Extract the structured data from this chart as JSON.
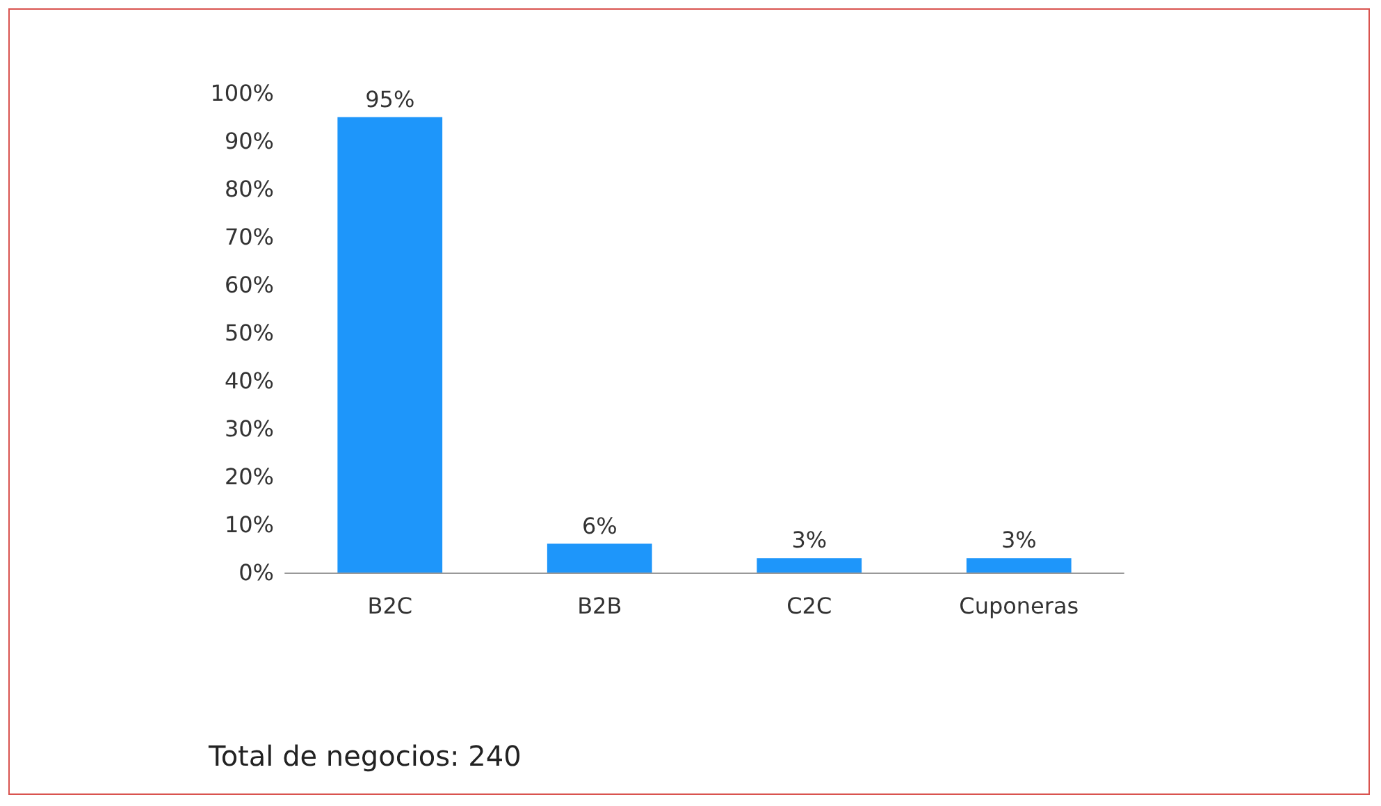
{
  "chart_data": {
    "type": "bar",
    "categories": [
      "B2C",
      "B2B",
      "C2C",
      "Cuponeras"
    ],
    "values": [
      95,
      6,
      3,
      3
    ],
    "value_labels": [
      "95%",
      "6%",
      "3%",
      "3%"
    ],
    "color": "#1e96fa",
    "ylim": [
      0,
      100
    ],
    "yticks": [
      {
        "value": 0,
        "label": "0%"
      },
      {
        "value": 10,
        "label": "10%"
      },
      {
        "value": 20,
        "label": "20%"
      },
      {
        "value": 30,
        "label": "30%"
      },
      {
        "value": 40,
        "label": "40%"
      },
      {
        "value": 50,
        "label": "50%"
      },
      {
        "value": 60,
        "label": "60%"
      },
      {
        "value": 70,
        "label": "70%"
      },
      {
        "value": 80,
        "label": "80%"
      },
      {
        "value": 90,
        "label": "90%"
      },
      {
        "value": 100,
        "label": "100%"
      }
    ],
    "grid": false,
    "annotations": [
      "Total de negocios: 240"
    ]
  }
}
